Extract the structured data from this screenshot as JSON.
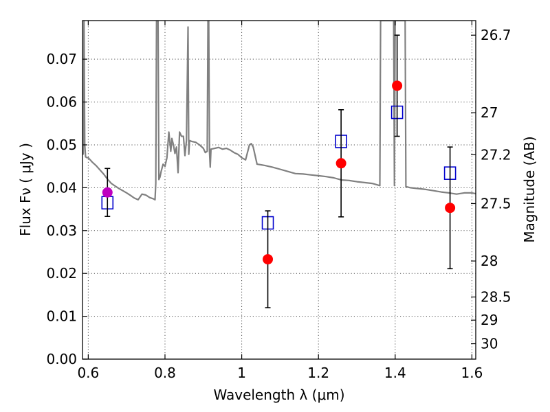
{
  "chart_data": {
    "type": "scatter",
    "title": "",
    "xlabel": "Wavelength  λ (μm)",
    "ylabel": "Flux  Fν  ( μJy )",
    "ylabel_right": "Magnitude (AB)",
    "xlim": [
      0.585,
      1.61
    ],
    "ylim": [
      0.0,
      0.079
    ],
    "grid": true,
    "xticks": [
      0.6,
      0.8,
      1.0,
      1.2,
      1.4,
      1.6
    ],
    "xtick_labels": [
      "0.6",
      "0.8",
      "1",
      "1.2",
      "1.4",
      "1.6"
    ],
    "yticks": [
      0.0,
      0.01,
      0.02,
      0.03,
      0.04,
      0.05,
      0.06,
      0.07
    ],
    "ytick_labels": [
      "0.00",
      "0.01",
      "0.02",
      "0.03",
      "0.04",
      "0.05",
      "0.06",
      "0.07"
    ],
    "right_ticks": [
      {
        "label": "26.7",
        "flux": 0.0756
      },
      {
        "label": "27",
        "flux": 0.0575
      },
      {
        "label": "27.2",
        "flux": 0.0477
      },
      {
        "label": "27.5",
        "flux": 0.0363
      },
      {
        "label": "28",
        "flux": 0.0229
      },
      {
        "label": "28.5",
        "flux": 0.0145
      },
      {
        "label": "29",
        "flux": 0.0091
      },
      {
        "label": "30",
        "flux": 0.0036
      }
    ],
    "colors": {
      "model": "#808080",
      "observed": "#ff0000",
      "observed_highlight": "#bf00bf",
      "model_band": "#0000cc",
      "errorbar": "#000000"
    },
    "series": [
      {
        "marker": "line",
        "x": [
          0.585,
          0.587,
          0.589,
          0.591,
          0.593,
          0.595,
          0.597,
          0.6,
          0.61,
          0.62,
          0.63,
          0.64,
          0.65,
          0.66,
          0.67,
          0.68,
          0.69,
          0.7,
          0.71,
          0.72,
          0.73,
          0.74,
          0.75,
          0.76,
          0.77,
          0.774,
          0.776,
          0.778,
          0.78,
          0.782,
          0.784,
          0.787,
          0.79,
          0.795,
          0.8,
          0.805,
          0.81,
          0.815,
          0.818,
          0.822,
          0.826,
          0.83,
          0.834,
          0.838,
          0.843,
          0.848,
          0.852,
          0.856,
          0.86,
          0.862,
          0.864,
          0.87,
          0.88,
          0.89,
          0.9,
          0.905,
          0.91,
          0.912,
          0.914,
          0.916,
          0.918,
          0.92,
          0.93,
          0.94,
          0.95,
          0.96,
          0.97,
          0.98,
          0.99,
          1.0,
          1.01,
          1.02,
          1.025,
          1.03,
          1.04,
          1.06,
          1.08,
          1.1,
          1.12,
          1.14,
          1.16,
          1.18,
          1.2,
          1.22,
          1.24,
          1.26,
          1.28,
          1.3,
          1.32,
          1.34,
          1.36,
          1.362,
          1.364,
          1.366,
          1.368,
          1.37,
          1.38,
          1.39,
          1.396,
          1.398,
          1.4,
          1.402,
          1.404,
          1.406,
          1.41,
          1.42,
          1.424,
          1.426,
          1.428,
          1.43,
          1.44,
          1.46,
          1.48,
          1.5,
          1.52,
          1.54,
          1.56,
          1.58,
          1.6,
          1.61
        ],
        "y": [
          0.0477,
          0.0479,
          0.079,
          0.05,
          0.0472,
          0.0471,
          0.047,
          0.047,
          0.046,
          0.0452,
          0.0442,
          0.0432,
          0.042,
          0.041,
          0.0404,
          0.0398,
          0.0393,
          0.0388,
          0.0382,
          0.0376,
          0.0372,
          0.0385,
          0.0383,
          0.0377,
          0.0374,
          0.0372,
          0.041,
          0.079,
          0.079,
          0.079,
          0.0419,
          0.0425,
          0.0438,
          0.0455,
          0.045,
          0.047,
          0.053,
          0.0485,
          0.0515,
          0.05,
          0.048,
          0.0495,
          0.0435,
          0.053,
          0.052,
          0.052,
          0.0475,
          0.051,
          0.0775,
          0.0478,
          0.051,
          0.0508,
          0.0506,
          0.05,
          0.0492,
          0.0482,
          0.0485,
          0.079,
          0.079,
          0.0485,
          0.0448,
          0.049,
          0.0492,
          0.0494,
          0.049,
          0.0492,
          0.0488,
          0.0482,
          0.0478,
          0.047,
          0.0465,
          0.05,
          0.0503,
          0.0495,
          0.0455,
          0.0452,
          0.0448,
          0.0443,
          0.0438,
          0.0433,
          0.0432,
          0.043,
          0.0428,
          0.0426,
          0.0423,
          0.0418,
          0.0417,
          0.0414,
          0.0412,
          0.041,
          0.0405,
          0.079,
          0.079,
          0.079,
          0.079,
          0.079,
          0.079,
          0.079,
          0.079,
          0.0405,
          0.079,
          0.079,
          0.079,
          0.079,
          0.079,
          0.079,
          0.079,
          0.079,
          0.0402,
          0.0402,
          0.04,
          0.0398,
          0.0396,
          0.0393,
          0.039,
          0.0388,
          0.0385,
          0.0388,
          0.0388,
          0.0386
        ]
      },
      {
        "marker": "square",
        "x": [
          0.65,
          1.068,
          1.259,
          1.405,
          1.543
        ],
        "y": [
          0.0365,
          0.0318,
          0.0508,
          0.0576,
          0.0434
        ]
      },
      {
        "marker": "circle",
        "x": [
          0.65,
          1.068,
          1.259,
          1.405,
          1.543
        ],
        "y": [
          0.0389,
          0.0233,
          0.0457,
          0.0638,
          0.0353
        ],
        "yerr": [
          0.0056,
          0.0113,
          0.0125,
          0.0118,
          0.0142
        ],
        "point_colors": [
          "#bf00bf",
          "#ff0000",
          "#ff0000",
          "#ff0000",
          "#ff0000"
        ]
      }
    ]
  }
}
